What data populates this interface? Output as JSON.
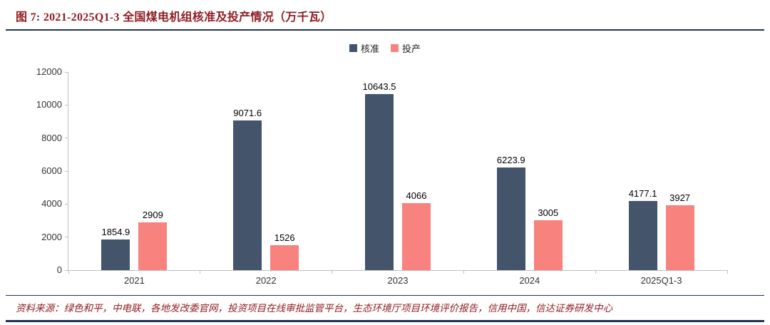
{
  "header": {
    "title": "图 7: 2021-2025Q1-3 全国煤电机组核准及投产情况（万千瓦）"
  },
  "footer": {
    "source": "资料来源：绿色和平，中电联，各地发改委官网，投资项目在线审批监管平台，生态环境厅项目环境评价报告，信用中国，信达证券研发中心"
  },
  "colors": {
    "title_red": "#8F1D22",
    "rule_navy": "#1F3357",
    "approved_bar": "#44546A",
    "commissioned_bar": "#F8827E",
    "axis_line": "#BFBFBF"
  },
  "chart_data": {
    "type": "bar",
    "title": "2021-2025Q1-3 全国煤电机组核准及投产情况（万千瓦）",
    "categories": [
      "2021",
      "2022",
      "2023",
      "2024",
      "2025Q1-3"
    ],
    "series": [
      {
        "key": "approved",
        "name": "核准",
        "color": "#44546A",
        "values": [
          1854.9,
          9071.6,
          10643.5,
          6223.9,
          4177.1
        ]
      },
      {
        "key": "commissioned",
        "name": "投产",
        "color": "#F8827E",
        "values": [
          2909,
          1526,
          4066,
          3005,
          3927
        ]
      }
    ],
    "xlabel": "",
    "ylabel": "",
    "ylim": [
      0,
      12000
    ],
    "yticks": [
      0,
      2000,
      4000,
      6000,
      8000,
      10000,
      12000
    ],
    "grid": false,
    "legend_position": "top",
    "data_labels": true
  }
}
